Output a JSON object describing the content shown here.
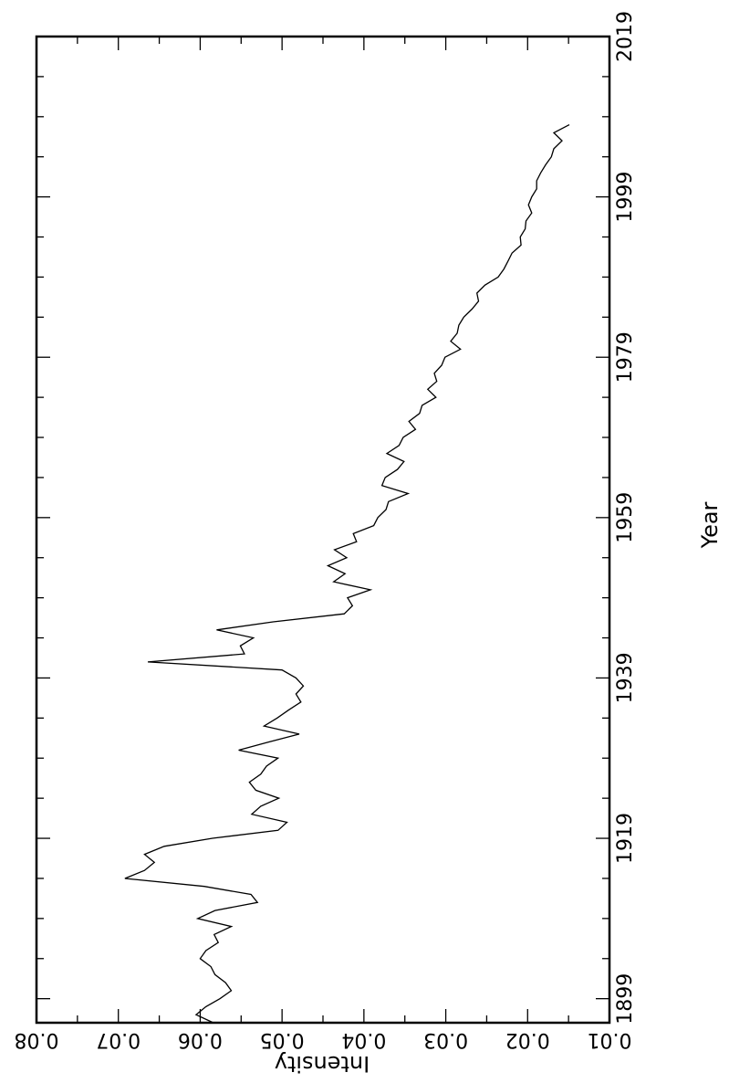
{
  "chart_data": {
    "type": "line",
    "orientation": "rotated-90-clockwise",
    "xlabel": "Year",
    "ylabel": "Intensity",
    "xlim": [
      1896,
      2019
    ],
    "ylim": [
      0.01,
      0.08
    ],
    "grid": false,
    "line_color": "#000000",
    "x_ticks": [
      "1899",
      "1919",
      "1939",
      "1959",
      "1979",
      "1999",
      "2019"
    ],
    "y_ticks": [
      "0.01",
      "0.02",
      "0.03",
      "0.04",
      "0.05",
      "0.06",
      "0.07",
      "0.08"
    ],
    "series": [
      {
        "points": [
          [
            1896,
            0.0584
          ],
          [
            1897,
            0.0605
          ],
          [
            1898,
            0.0593
          ],
          [
            1899,
            0.0576
          ],
          [
            1900,
            0.0562
          ],
          [
            1901,
            0.0569
          ],
          [
            1902,
            0.0582
          ],
          [
            1903,
            0.0587
          ],
          [
            1904,
            0.06
          ],
          [
            1905,
            0.0593
          ],
          [
            1906,
            0.0578
          ],
          [
            1907,
            0.0583
          ],
          [
            1908,
            0.0562
          ],
          [
            1909,
            0.0603
          ],
          [
            1910,
            0.0582
          ],
          [
            1911,
            0.053
          ],
          [
            1912,
            0.0538
          ],
          [
            1913,
            0.0595
          ],
          [
            1914,
            0.0692
          ],
          [
            1915,
            0.0668
          ],
          [
            1916,
            0.0656
          ],
          [
            1917,
            0.0668
          ],
          [
            1918,
            0.0644
          ],
          [
            1919,
            0.0585
          ],
          [
            1920,
            0.0505
          ],
          [
            1921,
            0.0494
          ],
          [
            1922,
            0.0537
          ],
          [
            1923,
            0.0526
          ],
          [
            1924,
            0.0504
          ],
          [
            1925,
            0.0532
          ],
          [
            1926,
            0.054
          ],
          [
            1927,
            0.0526
          ],
          [
            1928,
            0.0519
          ],
          [
            1929,
            0.0505
          ],
          [
            1930,
            0.0553
          ],
          [
            1931,
            0.0517
          ],
          [
            1932,
            0.0479
          ],
          [
            1933,
            0.0522
          ],
          [
            1934,
            0.0506
          ],
          [
            1935,
            0.0492
          ],
          [
            1936,
            0.0477
          ],
          [
            1937,
            0.0483
          ],
          [
            1938,
            0.0474
          ],
          [
            1939,
            0.0483
          ],
          [
            1940,
            0.05
          ],
          [
            1941,
            0.0664
          ],
          [
            1942,
            0.0546
          ],
          [
            1943,
            0.0551
          ],
          [
            1944,
            0.0535
          ],
          [
            1945,
            0.058
          ],
          [
            1946,
            0.0511
          ],
          [
            1947,
            0.0424
          ],
          [
            1948,
            0.0414
          ],
          [
            1949,
            0.042
          ],
          [
            1950,
            0.0392
          ],
          [
            1951,
            0.0437
          ],
          [
            1952,
            0.0423
          ],
          [
            1953,
            0.0444
          ],
          [
            1954,
            0.0421
          ],
          [
            1955,
            0.0436
          ],
          [
            1956,
            0.0409
          ],
          [
            1957,
            0.0413
          ],
          [
            1958,
            0.0388
          ],
          [
            1959,
            0.0383
          ],
          [
            1960,
            0.0373
          ],
          [
            1961,
            0.037
          ],
          [
            1962,
            0.0346
          ],
          [
            1963,
            0.0378
          ],
          [
            1964,
            0.0374
          ],
          [
            1965,
            0.0359
          ],
          [
            1966,
            0.0351
          ],
          [
            1967,
            0.0372
          ],
          [
            1968,
            0.0357
          ],
          [
            1969,
            0.0352
          ],
          [
            1970,
            0.0337
          ],
          [
            1971,
            0.0345
          ],
          [
            1972,
            0.0332
          ],
          [
            1973,
            0.0329
          ],
          [
            1974,
            0.0312
          ],
          [
            1975,
            0.0322
          ],
          [
            1976,
            0.0311
          ],
          [
            1977,
            0.0314
          ],
          [
            1978,
            0.0305
          ],
          [
            1979,
            0.0301
          ],
          [
            1980,
            0.0282
          ],
          [
            1981,
            0.0294
          ],
          [
            1982,
            0.0286
          ],
          [
            1983,
            0.0284
          ],
          [
            1984,
            0.0278
          ],
          [
            1985,
            0.0268
          ],
          [
            1986,
            0.026
          ],
          [
            1987,
            0.0262
          ],
          [
            1988,
            0.0252
          ],
          [
            1989,
            0.0236
          ],
          [
            1990,
            0.0229
          ],
          [
            1991,
            0.0224
          ],
          [
            1992,
            0.0219
          ],
          [
            1993,
            0.0208
          ],
          [
            1994,
            0.0209
          ],
          [
            1995,
            0.0203
          ],
          [
            1996,
            0.0202
          ],
          [
            1997,
            0.0195
          ],
          [
            1998,
            0.0199
          ],
          [
            1999,
            0.0195
          ],
          [
            2000,
            0.0189
          ],
          [
            2001,
            0.0189
          ],
          [
            2002,
            0.0184
          ],
          [
            2003,
            0.0178
          ],
          [
            2004,
            0.0171
          ],
          [
            2005,
            0.0168
          ],
          [
            2006,
            0.0158
          ],
          [
            2007,
            0.0168
          ],
          [
            2008,
            0.0149
          ]
        ]
      }
    ]
  }
}
